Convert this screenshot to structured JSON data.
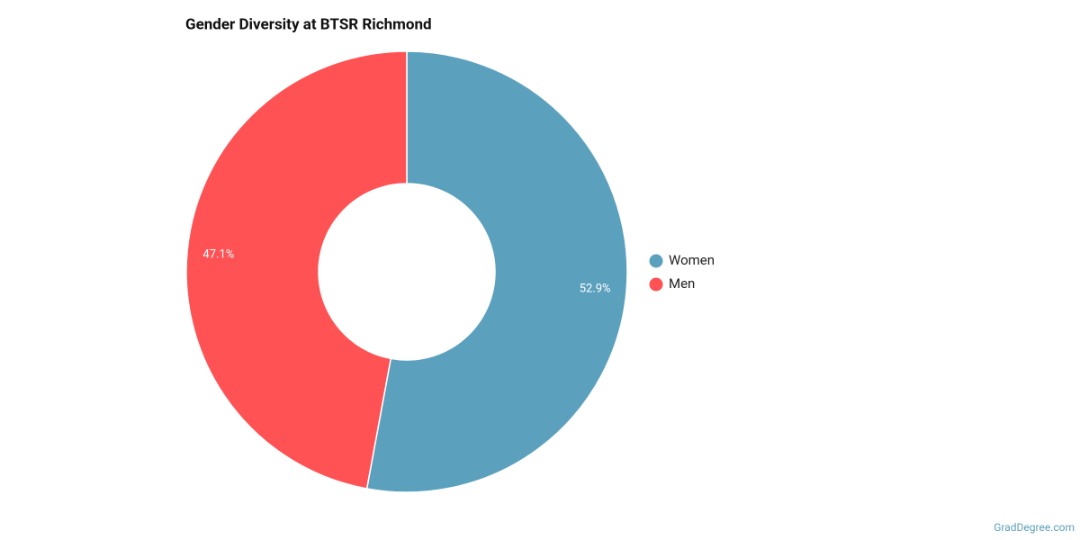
{
  "chart_data": {
    "type": "donut",
    "title": "Gender Diversity at BTSR Richmond",
    "categories": [
      "Women",
      "Men"
    ],
    "values": [
      52.9,
      47.1
    ],
    "value_labels": [
      "52.9%",
      "47.1%"
    ],
    "colors": [
      "#5ba0bd",
      "#fe5254"
    ],
    "legend": "right"
  },
  "watermark": "GradDegree.com"
}
